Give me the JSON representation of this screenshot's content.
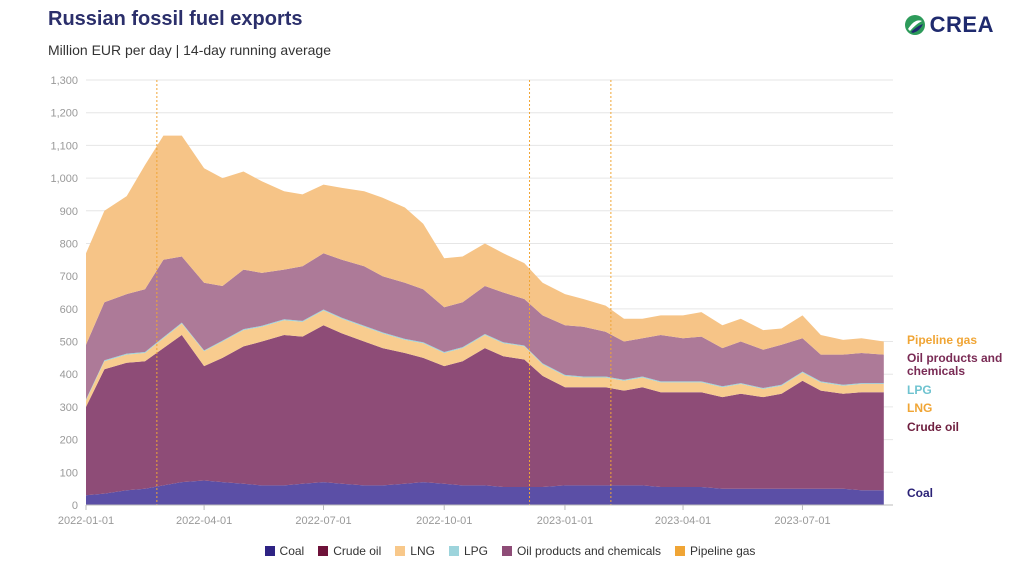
{
  "header": {
    "title": "Russian fossil fuel exports",
    "subtitle": "Million EUR per day | 14-day running average",
    "logo_text": "CREA"
  },
  "chart_data": {
    "type": "area",
    "stacked": true,
    "ylim": [
      0,
      1300
    ],
    "yticks": [
      0,
      100,
      200,
      300,
      400,
      500,
      600,
      700,
      800,
      900,
      1000,
      1100,
      1200,
      1300
    ],
    "ytick_labels": [
      "0",
      "100",
      "200",
      "300",
      "400",
      "500",
      "600",
      "700",
      "800",
      "900",
      "1,000",
      "1,100",
      "1,200",
      "1,300"
    ],
    "xlim": [
      "2022-01-01",
      "2023-09-08"
    ],
    "xticks": [
      "2022-01-01",
      "2022-04-01",
      "2022-07-01",
      "2022-10-01",
      "2023-01-01",
      "2023-04-01",
      "2023-07-01"
    ],
    "vlines": [
      "2022-02-24",
      "2022-12-05",
      "2023-02-05"
    ],
    "grid": "horizontal",
    "x": [
      "2022-01-01",
      "2022-01-15",
      "2022-02-01",
      "2022-02-15",
      "2022-03-01",
      "2022-03-15",
      "2022-04-01",
      "2022-04-15",
      "2022-05-01",
      "2022-05-15",
      "2022-06-01",
      "2022-06-15",
      "2022-07-01",
      "2022-07-15",
      "2022-08-01",
      "2022-08-15",
      "2022-09-01",
      "2022-09-15",
      "2022-10-01",
      "2022-10-15",
      "2022-11-01",
      "2022-11-15",
      "2022-12-01",
      "2022-12-15",
      "2023-01-01",
      "2023-01-15",
      "2023-02-01",
      "2023-02-15",
      "2023-03-01",
      "2023-03-15",
      "2023-04-01",
      "2023-04-15",
      "2023-05-01",
      "2023-05-15",
      "2023-06-01",
      "2023-06-15",
      "2023-07-01",
      "2023-07-15",
      "2023-08-01",
      "2023-08-15",
      "2023-09-01"
    ],
    "series": [
      {
        "name": "Coal",
        "color": "#5b4fa6",
        "values": [
          30,
          35,
          45,
          50,
          60,
          70,
          75,
          70,
          65,
          60,
          60,
          65,
          70,
          65,
          60,
          60,
          65,
          70,
          65,
          60,
          60,
          55,
          55,
          55,
          60,
          60,
          60,
          60,
          60,
          55,
          55,
          55,
          50,
          50,
          50,
          50,
          50,
          50,
          50,
          45,
          45
        ]
      },
      {
        "name": "Crude oil",
        "color": "#8e4c77",
        "values": [
          270,
          380,
          390,
          390,
          420,
          450,
          350,
          380,
          420,
          440,
          460,
          450,
          480,
          460,
          440,
          420,
          400,
          380,
          360,
          380,
          420,
          400,
          390,
          340,
          300,
          300,
          300,
          290,
          300,
          290,
          290,
          290,
          280,
          290,
          280,
          290,
          330,
          300,
          290,
          300,
          300
        ]
      },
      {
        "name": "LNG",
        "color": "#f8cc8f",
        "values": [
          20,
          25,
          25,
          25,
          30,
          35,
          45,
          50,
          50,
          45,
          45,
          45,
          45,
          45,
          45,
          45,
          40,
          45,
          40,
          40,
          40,
          40,
          40,
          35,
          35,
          30,
          30,
          30,
          30,
          30,
          30,
          30,
          30,
          30,
          25,
          25,
          25,
          25,
          25,
          25,
          25
        ]
      },
      {
        "name": "LPG",
        "color": "#9dd4dc",
        "values": [
          3,
          3,
          3,
          3,
          3,
          3,
          3,
          3,
          3,
          3,
          3,
          3,
          3,
          3,
          3,
          3,
          3,
          3,
          3,
          3,
          3,
          3,
          3,
          3,
          3,
          3,
          3,
          3,
          3,
          3,
          3,
          3,
          3,
          3,
          3,
          3,
          3,
          3,
          3,
          3,
          3
        ]
      },
      {
        "name": "Oil products and chemicals",
        "color": "#ad7a98",
        "values": [
          167,
          177,
          182,
          192,
          237,
          202,
          207,
          167,
          182,
          162,
          152,
          167,
          172,
          177,
          182,
          172,
          172,
          162,
          137,
          137,
          147,
          152,
          142,
          147,
          152,
          152,
          137,
          117,
          117,
          142,
          132,
          137,
          117,
          127,
          117,
          122,
          102,
          82,
          92,
          92,
          87
        ]
      },
      {
        "name": "Pipeline gas",
        "color": "#f6c487",
        "values": [
          280,
          280,
          300,
          380,
          380,
          370,
          350,
          330,
          300,
          280,
          240,
          220,
          210,
          220,
          230,
          240,
          230,
          200,
          150,
          140,
          130,
          120,
          110,
          100,
          95,
          85,
          80,
          70,
          60,
          60,
          70,
          75,
          70,
          70,
          60,
          50,
          70,
          60,
          45,
          45,
          40
        ]
      }
    ],
    "end_labels": [
      {
        "text": "Pipeline gas",
        "color": "#f0a535"
      },
      {
        "text": "Oil products and",
        "color": "#7a2b55"
      },
      {
        "text": "chemicals",
        "color": "#7a2b55"
      },
      {
        "text": "LPG",
        "color": "#6fc3d0"
      },
      {
        "text": "LNG",
        "color": "#f0a535"
      },
      {
        "text": "Crude oil",
        "color": "#6e1e3e"
      },
      {
        "text": "Coal",
        "color": "#2b2277"
      }
    ],
    "legend": [
      {
        "label": "Coal",
        "color": "#2e2384"
      },
      {
        "label": "Crude oil",
        "color": "#6e1239"
      },
      {
        "label": "LNG",
        "color": "#f8c88a"
      },
      {
        "label": "LPG",
        "color": "#9dd4dc"
      },
      {
        "label": "Oil products and chemicals",
        "color": "#8e4c77"
      },
      {
        "label": "Pipeline gas",
        "color": "#f0a535"
      }
    ]
  }
}
